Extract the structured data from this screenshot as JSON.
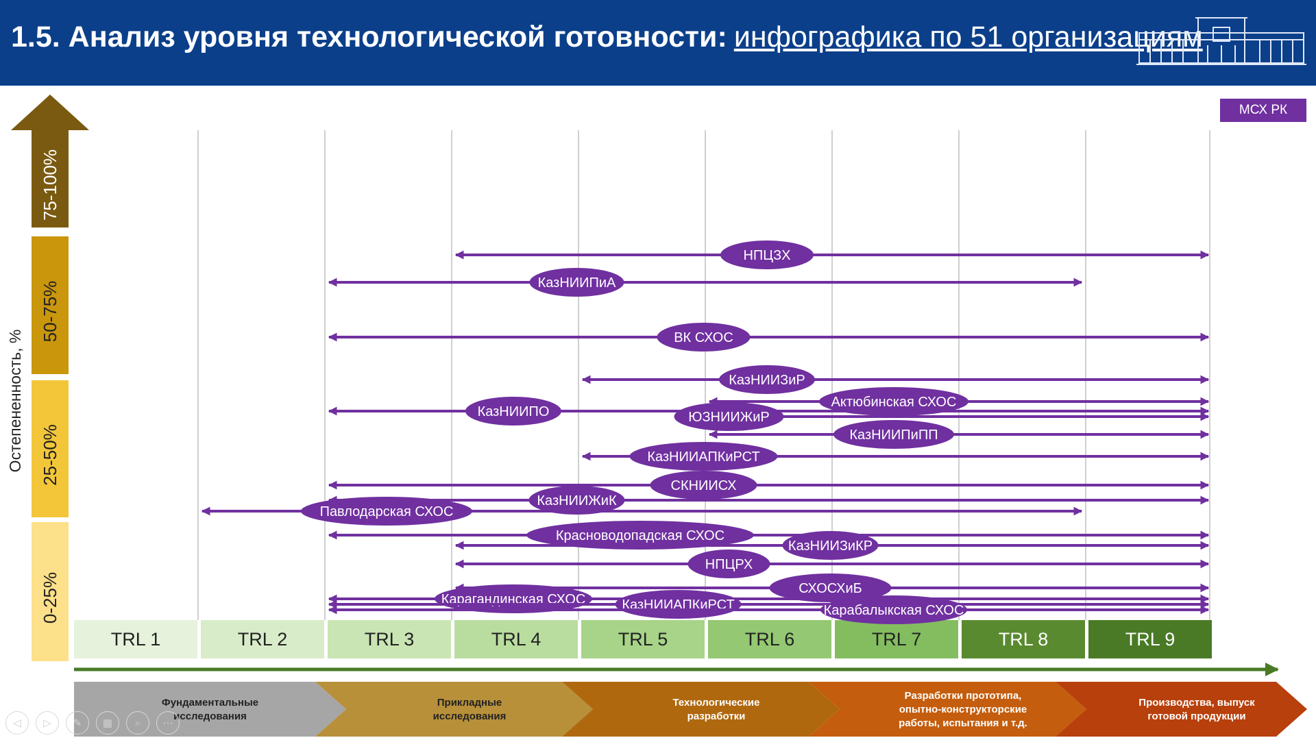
{
  "header": {
    "title": "1.5. Анализ уровня технологической готовности:",
    "link": "инфографика по 51 организациям",
    "badge": "МСХ РК"
  },
  "y_axis": {
    "label": "Остепененность, %",
    "bands": [
      {
        "label": "75-100%",
        "color": "#7a5a10"
      },
      {
        "label": "50-75%",
        "color": "#c9960c"
      },
      {
        "label": "25-50%",
        "color": "#f3c63a"
      },
      {
        "label": "0-25%",
        "color": "#fde08a"
      }
    ]
  },
  "trl_levels": [
    {
      "label": "TRL 1",
      "color": "#e6f2dc",
      "text": "#222222"
    },
    {
      "label": "TRL 2",
      "color": "#d8ecc9",
      "text": "#222222"
    },
    {
      "label": "TRL 3",
      "color": "#c9e5b4",
      "text": "#222222"
    },
    {
      "label": "TRL 4",
      "color": "#b9dd9f",
      "text": "#222222"
    },
    {
      "label": "TRL 5",
      "color": "#a7d488",
      "text": "#222222"
    },
    {
      "label": "TRL 6",
      "color": "#94c872",
      "text": "#222222"
    },
    {
      "label": "TRL 7",
      "color": "#84bd60",
      "text": "#222222"
    },
    {
      "label": "TRL 8",
      "color": "#5a8a30",
      "text": "#ffffff"
    },
    {
      "label": "TRL 9",
      "color": "#4a7a26",
      "text": "#ffffff"
    }
  ],
  "stages": [
    {
      "label": "Фундаментальные исследования",
      "color": "#a6a6a6"
    },
    {
      "label": "Прикладные исследования",
      "color": "#b8903a"
    },
    {
      "label": "Технологические разработки",
      "color": "#b0680f"
    },
    {
      "label": "Разработки прототипа, опытно-конструкторские работы, испытания и т.д.",
      "color": "#c45d0d"
    },
    {
      "label": "Производства, выпуск готовой продукции",
      "color": "#b8400c"
    }
  ],
  "organizations": [
    {
      "name": "НПЦЗХ",
      "from_trl": 4,
      "to_trl": 9,
      "label_trl": 6.0
    },
    {
      "name": "КазНИИПиА",
      "from_trl": 3,
      "to_trl": 8,
      "label_trl": 4.5
    },
    {
      "name": "ВК СХОС",
      "from_trl": 3,
      "to_trl": 9,
      "label_trl": 5.5
    },
    {
      "name": "КазНИИЗиР",
      "from_trl": 5,
      "to_trl": 9,
      "label_trl": 6.0
    },
    {
      "name": "Актюбинская СХОС",
      "from_trl": 6,
      "to_trl": 9,
      "label_trl": 7.0
    },
    {
      "name": "КазНИИПО",
      "from_trl": 3,
      "to_trl": 9,
      "label_trl": 4.0
    },
    {
      "name": "ЮЗНИИЖиР",
      "from_trl": 6,
      "to_trl": 9,
      "label_trl": 5.7
    },
    {
      "name": "КазНИИПиПП",
      "from_trl": 6,
      "to_trl": 9,
      "label_trl": 7.0
    },
    {
      "name": "КазНИИАПКиРСТ",
      "from_trl": 5,
      "to_trl": 9,
      "label_trl": 5.5
    },
    {
      "name": "СКНИИСХ",
      "from_trl": 3,
      "to_trl": 9,
      "label_trl": 5.5
    },
    {
      "name": "КазНИИЖиК",
      "from_trl": 3,
      "to_trl": 9,
      "label_trl": 4.5
    },
    {
      "name": "Павлодарская СХОС",
      "from_trl": 2,
      "to_trl": 8,
      "label_trl": 3.0
    },
    {
      "name": "Красноводопадская СХОС",
      "from_trl": 3,
      "to_trl": 9,
      "label_trl": 5.0
    },
    {
      "name": "КазНИИЗиКР",
      "from_trl": 4,
      "to_trl": 9,
      "label_trl": 6.5
    },
    {
      "name": "НПЦРХ",
      "from_trl": 4,
      "to_trl": 9,
      "label_trl": 5.7
    },
    {
      "name": "СХОСХиБ",
      "from_trl": 4,
      "to_trl": 9,
      "label_trl": 6.5
    },
    {
      "name": "Карагандинская СХОС",
      "from_trl": 3,
      "to_trl": 9,
      "label_trl": 4.0
    },
    {
      "name": "КазНИИАПКиРСТ",
      "from_trl": 3,
      "to_trl": 9,
      "label_trl": 5.3
    },
    {
      "name": "Карабалыкская СХОС",
      "from_trl": 3,
      "to_trl": 9,
      "label_trl": 7.0
    }
  ],
  "colors": {
    "header": "#0b3f8a",
    "accent": "#7030a0",
    "axis_arrow": "#4a7a26",
    "grid": "#bfbfbf"
  },
  "controls": [
    {
      "icon": "previous-icon",
      "glyph": "◁"
    },
    {
      "icon": "next-icon",
      "glyph": "▷"
    },
    {
      "icon": "pen-icon",
      "glyph": "✎"
    },
    {
      "icon": "slides-icon",
      "glyph": "▦"
    },
    {
      "icon": "zoom-icon",
      "glyph": "⌕"
    },
    {
      "icon": "more-icon",
      "glyph": "⋯"
    }
  ]
}
